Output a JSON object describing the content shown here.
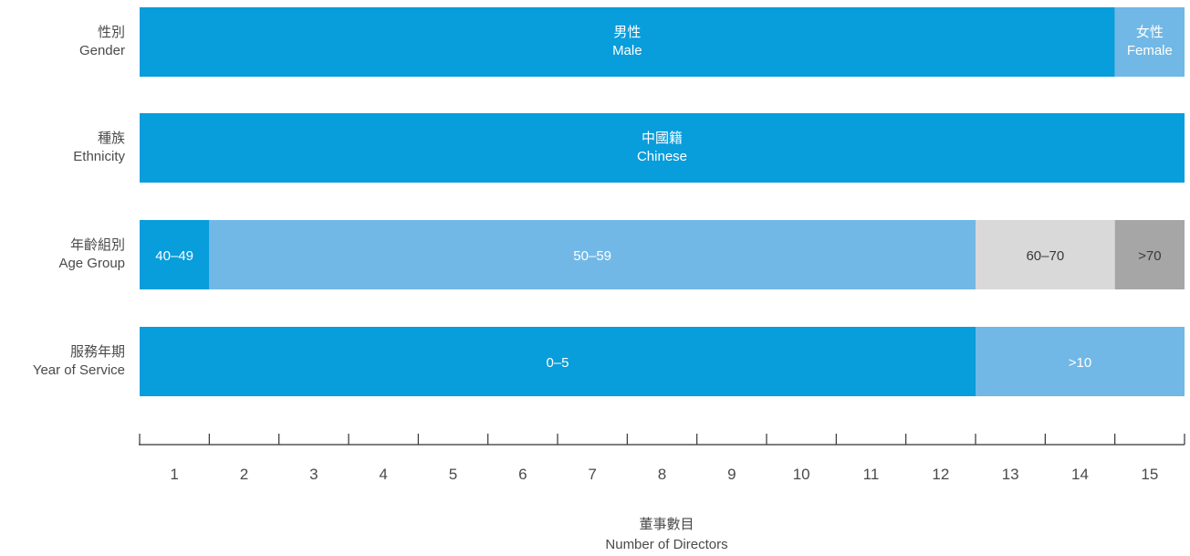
{
  "chart_data": {
    "type": "bar",
    "orientation": "horizontal-stacked",
    "x_axis": {
      "title_zh": "董事數目",
      "title_en": "Number of Directors",
      "ticks": [
        "1",
        "2",
        "3",
        "4",
        "5",
        "6",
        "7",
        "8",
        "9",
        "10",
        "11",
        "12",
        "13",
        "14",
        "15"
      ],
      "xlim": [
        0,
        15
      ]
    },
    "rows": [
      {
        "label_zh": "性別",
        "label_en": "Gender",
        "segments": [
          {
            "label_zh": "男性",
            "label_en": "Male",
            "value": 14,
            "color": "#089ddb"
          },
          {
            "label_zh": "女性",
            "label_en": "Female",
            "value": 1,
            "color": "#71b8e6"
          }
        ]
      },
      {
        "label_zh": "種族",
        "label_en": "Ethnicity",
        "segments": [
          {
            "label_zh": "中國籍",
            "label_en": "Chinese",
            "value": 15,
            "color": "#089ddb"
          }
        ]
      },
      {
        "label_zh": "年齡組別",
        "label_en": "Age Group",
        "segments": [
          {
            "label_zh": "",
            "label_en": "40–49",
            "value": 1,
            "color": "#089ddb"
          },
          {
            "label_zh": "",
            "label_en": "50–59",
            "value": 11,
            "color": "#71b8e6"
          },
          {
            "label_zh": "",
            "label_en": "60–70",
            "value": 2,
            "color": "#d9d9d9"
          },
          {
            "label_zh": "",
            "label_en": ">70",
            "value": 1,
            "color": "#a6a6a6"
          }
        ]
      },
      {
        "label_zh": "服務年期",
        "label_en": "Year of Service",
        "segments": [
          {
            "label_zh": "",
            "label_en": "0–5",
            "value": 12,
            "color": "#089ddb"
          },
          {
            "label_zh": "",
            "label_en": ">10",
            "value": 3,
            "color": "#71b8e6"
          }
        ]
      }
    ],
    "colors": {
      "primary": "#089ddb",
      "secondary": "#71b8e6",
      "light_grey": "#d9d9d9",
      "dark_grey": "#a6a6a6",
      "text": "#4a4a4a",
      "axis": "#333333"
    }
  }
}
